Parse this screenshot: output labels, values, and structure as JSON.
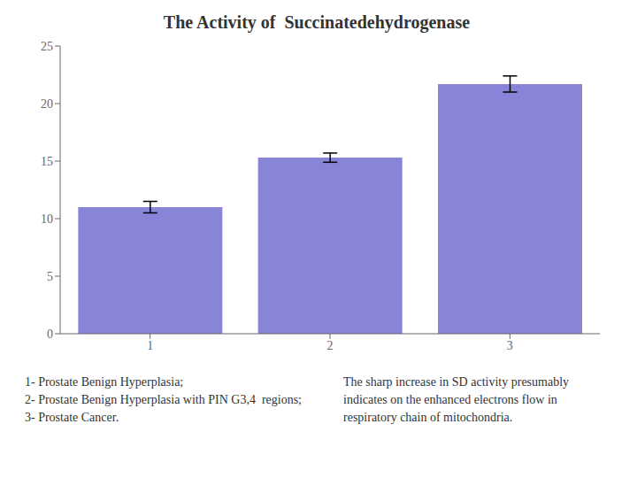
{
  "chart_data": {
    "type": "bar",
    "title": "The Activity of  Succinatedehydrogenase",
    "categories": [
      "1",
      "2",
      "3"
    ],
    "values": [
      11.0,
      15.3,
      21.7
    ],
    "errors": [
      0.5,
      0.4,
      0.7
    ],
    "ylim": [
      0,
      25
    ],
    "yticks": [
      0,
      5,
      10,
      15,
      20,
      25
    ],
    "color": "#8884d8",
    "grid": false,
    "annotations": [
      "1- Prostate Benign Hyperplasia;",
      "2- Prostate Benign Hyperplasia with PIN G3,4  regions;",
      "3- Prostate Cancer.",
      "The sharp increase in SD activity presumably\nindicates on the enhanced electrons flow in\nrespiratory chain of mitochondria."
    ]
  }
}
